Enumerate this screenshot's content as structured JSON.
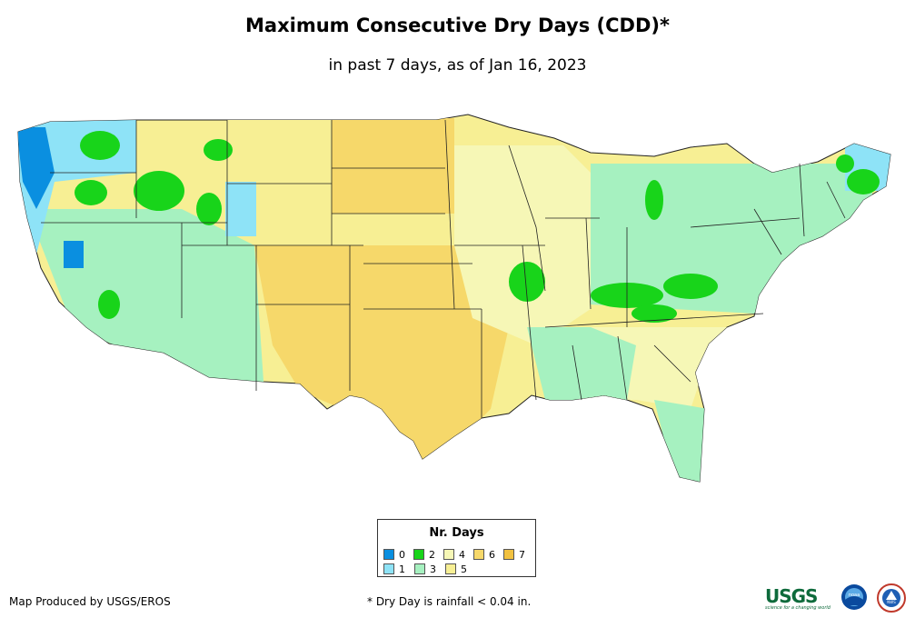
{
  "title": "Maximum Consecutive Dry Days (CDD)*",
  "subtitle": "in past 7 days, as of Jan 16, 2023",
  "legend": {
    "title": "Nr. Days",
    "items": [
      {
        "label": "0",
        "color": "#0a8fe0"
      },
      {
        "label": "1",
        "color": "#8ee3f7"
      },
      {
        "label": "2",
        "color": "#18d41a"
      },
      {
        "label": "3",
        "color": "#a6f1c0"
      },
      {
        "label": "4",
        "color": "#f6f7b6"
      },
      {
        "label": "5",
        "color": "#f7ef94"
      },
      {
        "label": "6",
        "color": "#f6d86a"
      },
      {
        "label": "7",
        "color": "#f1c140"
      }
    ]
  },
  "footer": {
    "producer": "Map Produced by USGS/EROS",
    "note": "* Dry Day is rainfall < 0.04 in."
  },
  "logos": {
    "usgs": "USGS",
    "usgs_tagline": "science for a changing world",
    "noaa": "noaa",
    "nws": "NWS"
  }
}
